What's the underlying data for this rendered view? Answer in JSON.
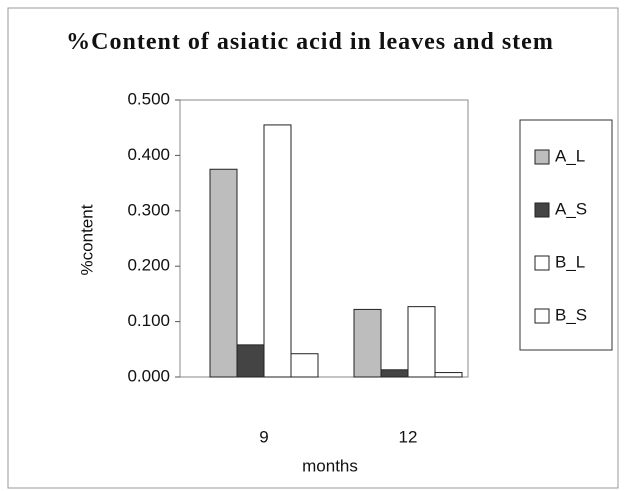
{
  "chart_data": {
    "type": "bar",
    "title": "%Content of asiatic acid in leaves and stem",
    "x_label": "months",
    "y_label": "%content",
    "categories": [
      "9",
      "12"
    ],
    "series": [
      {
        "name": "A_L",
        "color": "#bdbdbd",
        "values": [
          0.375,
          0.122
        ]
      },
      {
        "name": "A_S",
        "color": "#444444",
        "values": [
          0.058,
          0.013
        ]
      },
      {
        "name": "B_L",
        "color": "#ffffff",
        "values": [
          0.455,
          0.127
        ]
      },
      {
        "name": "B_S",
        "color": "#ffffff",
        "values": [
          0.042,
          0.008
        ]
      }
    ],
    "ylim": [
      0,
      0.5
    ],
    "yticks": [
      {
        "value": 0,
        "label": "0.000"
      },
      {
        "value": 0.1,
        "label": "0.100"
      },
      {
        "value": 0.2,
        "label": "0.200"
      },
      {
        "value": 0.3,
        "label": "0.300"
      },
      {
        "value": 0.4,
        "label": "0.400"
      },
      {
        "value": 0.5,
        "label": "0.500"
      }
    ],
    "legend": "right"
  }
}
